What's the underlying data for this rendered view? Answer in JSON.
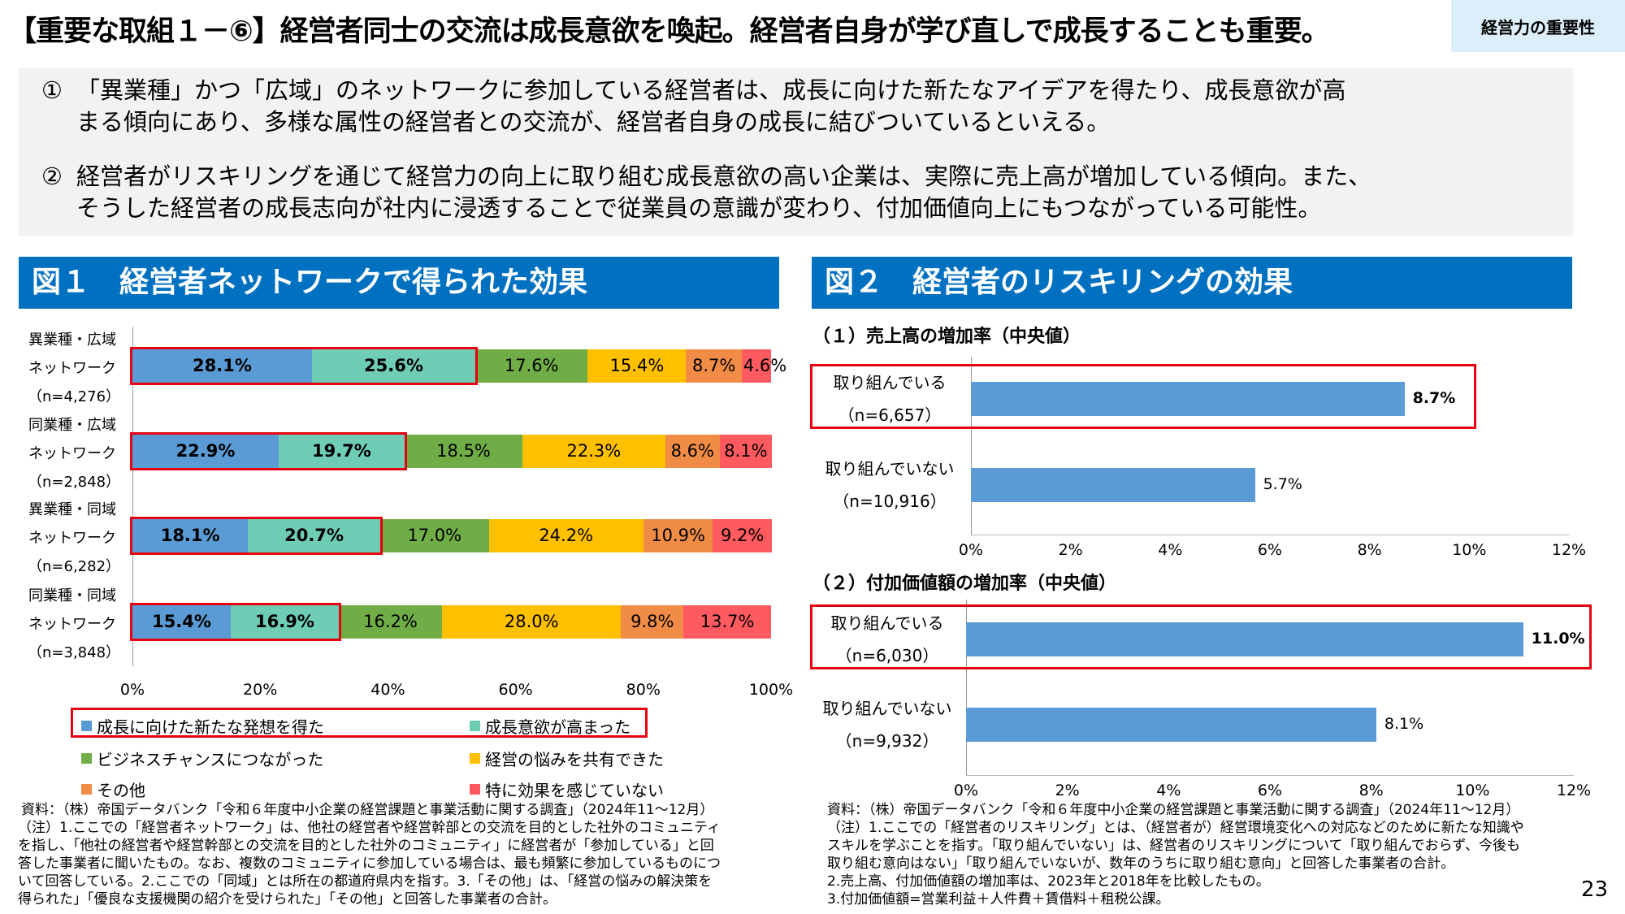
{
  "header": {
    "title": "【重要な取組１－⑥】経営者同士の交流は成長意欲を喚起。経営者自身が学び直しで成長することも重要。",
    "tag": "経営力の重要性"
  },
  "bullets": [
    {
      "num": "①",
      "lines": [
        "「異業種」かつ「広域」のネットワークに参加している経営者は、成長に向けた新たなアイデアを得たり、成長意欲が高",
        "まる傾向にあり、多様な属性の経営者との交流が、経営者自身の成長に結びついているといえる。"
      ]
    },
    {
      "num": "②",
      "lines": [
        "経営者がリスキリングを通じて経営力の向上に取り組む成長意欲の高い企業は、実際に売上高が増加している傾向。また、",
        "そうした経営者の成長志向が社内に浸透することで従業員の意識が変わり、付加価値向上にもつながっている可能性。"
      ]
    }
  ],
  "fig1": {
    "title": "図１　経営者ネットワークで得られた効果"
  },
  "fig2": {
    "title": "図２　経営者のリスキリングの効果",
    "sub1": "（１）売上高の増加率（中央値）",
    "sub2": "（２）付加価値額の増加率（中央値）"
  },
  "chart_data": [
    {
      "type": "bar",
      "stacked": true,
      "orientation": "horizontal",
      "xlim": [
        0,
        100
      ],
      "xticks": [
        "0%",
        "20%",
        "40%",
        "60%",
        "80%",
        "100%"
      ],
      "categories": [
        [
          "異業種・広域",
          "ネットワーク",
          "（n=4,276）"
        ],
        [
          "同業種・広域",
          "ネットワーク",
          "（n=2,848）"
        ],
        [
          "異業種・同域",
          "ネットワーク",
          "（n=6,282）"
        ],
        [
          "同業種・同域",
          "ネットワーク",
          "（n=3,848）"
        ]
      ],
      "series": [
        {
          "name": "成長に向けた新たな発想を得た",
          "color": "#5b9bd5",
          "values": [
            28.1,
            22.9,
            18.1,
            15.4
          ]
        },
        {
          "name": "成長意欲が高まった",
          "color": "#70cdb5",
          "values": [
            25.6,
            19.7,
            20.7,
            16.9
          ]
        },
        {
          "name": "ビジネスチャンスにつながった",
          "color": "#70ad47",
          "values": [
            17.6,
            18.5,
            17.0,
            16.2
          ]
        },
        {
          "name": "経営の悩みを共有できた",
          "color": "#ffc000",
          "values": [
            15.4,
            22.3,
            24.2,
            28.0
          ]
        },
        {
          "name": "その他",
          "color": "#f08c46",
          "values": [
            8.7,
            8.6,
            10.9,
            9.8
          ]
        },
        {
          "name": "特に効果を感じていない",
          "color": "#ff5a5f",
          "values": [
            4.6,
            8.1,
            9.2,
            13.7
          ]
        }
      ],
      "legend": "bottom"
    },
    {
      "type": "bar",
      "orientation": "horizontal",
      "title": "（１）売上高の増加率（中央値）",
      "xlim": [
        0,
        12
      ],
      "xticks": [
        "0%",
        "2%",
        "4%",
        "6%",
        "8%",
        "10%",
        "12%"
      ],
      "categories": [
        [
          "取り組んでいる",
          "（n=6,657）"
        ],
        [
          "取り組んでいない",
          "（n=10,916）"
        ]
      ],
      "values": [
        8.7,
        5.7
      ],
      "labels": [
        "8.7%",
        "5.7%"
      ],
      "color": "#5b9bd5"
    },
    {
      "type": "bar",
      "orientation": "horizontal",
      "title": "（２）付加価値額の増加率（中央値）",
      "xlim": [
        0,
        12
      ],
      "xticks": [
        "0%",
        "2%",
        "4%",
        "6%",
        "8%",
        "10%",
        "12%"
      ],
      "categories": [
        [
          "取り組んでいる",
          "（n=6,030）"
        ],
        [
          "取り組んでいない",
          "（n=9,932）"
        ]
      ],
      "values": [
        11.0,
        8.1
      ],
      "labels": [
        "11.0%",
        "8.1%"
      ],
      "color": "#5b9bd5"
    }
  ],
  "notes_left": [
    "資料：（株）帝国データバンク「令和６年度中小企業の経営課題と事業活動に関する調査」（2024年11～12月）",
    "（注）1.ここでの「経営者ネットワーク」は、他社の経営者や経営幹部との交流を目的とした社外のコミュニティ",
    "を指し、「他社の経営者や経営幹部との交流を目的とした社外のコミュニティ」に経営者が「参加している」と回",
    "答した事業者に聞いたもの。なお、複数のコミュニティに参加している場合は、最も頻繁に参加しているものにつ",
    "いて回答している。2.ここでの「同域」とは所在の都道府県内を指す。3.「その他」は、「経営の悩みの解決策を",
    "得られた」「優良な支援機関の紹介を受けられた」「その他」と回答した事業者の合計。"
  ],
  "notes_right": [
    "資料：（株）帝国データバンク「令和６年度中小企業の経営課題と事業活動に関する調査」（2024年11～12月）",
    "（注）1.ここでの「経営者のリスキリング」とは、（経営者が）経営環境変化への対応などのために新たな知識や",
    "スキルを学ぶことを指す。「取り組んでいない」は、経営者のリスキリングについて「取り組んでおらず、今後も",
    "取り組む意向はない」「取り組んでいないが、数年のうちに取り組む意向」と回答した事業者の合計。",
    "2.売上高、付加価値額の増加率は、2023年と2018年を比較したもの。",
    "3.付加価値額=営業利益＋人件費＋賃借料＋租税公課。"
  ],
  "page_number": "23"
}
